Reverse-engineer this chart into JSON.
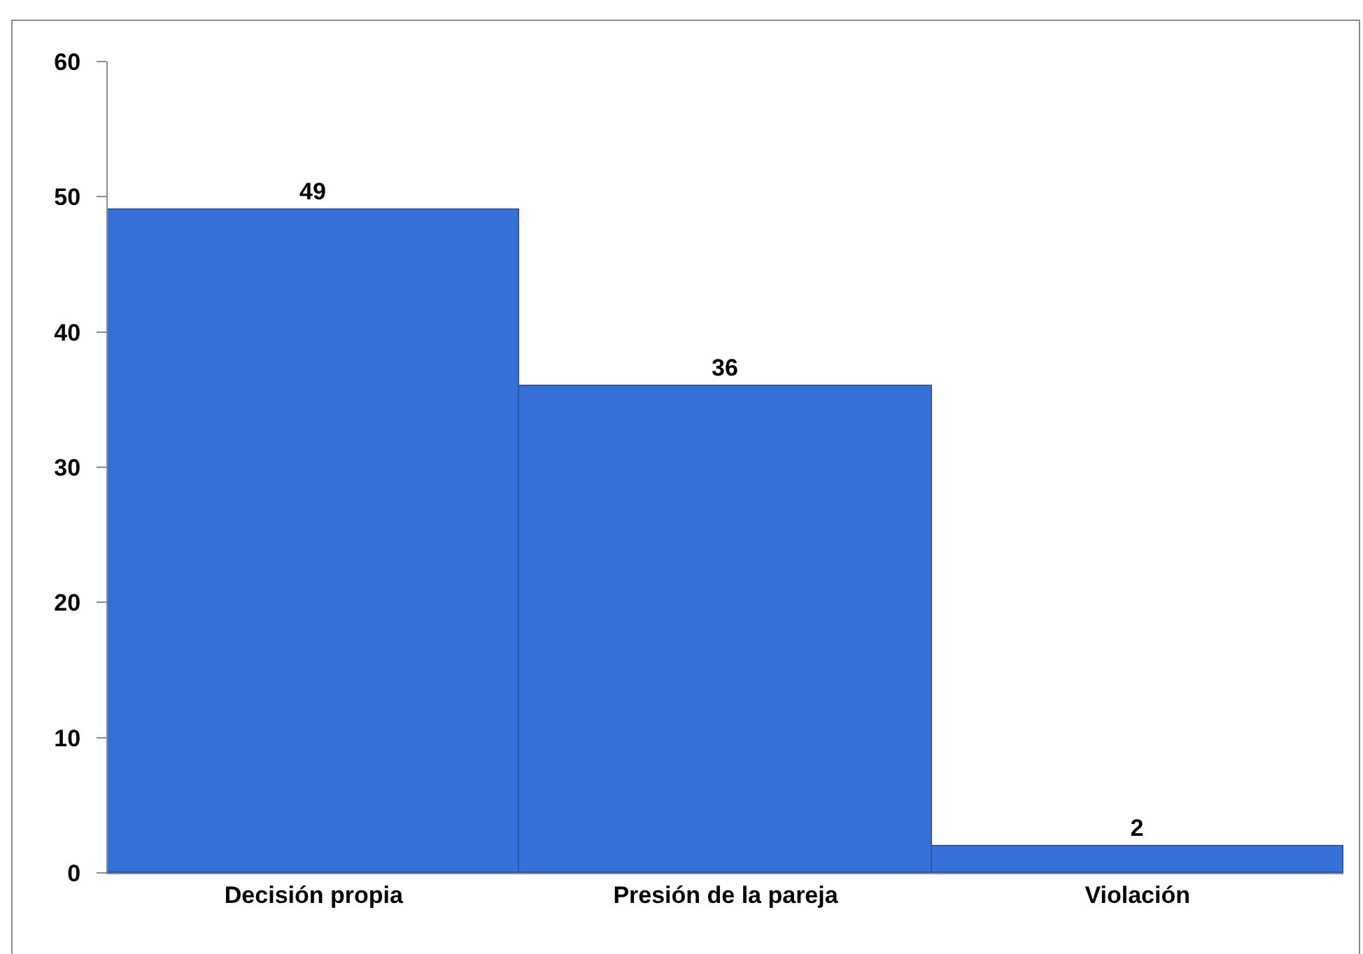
{
  "chart_data": {
    "type": "bar",
    "categories": [
      "Decisión propia",
      "Presión de la pareja",
      "Violación"
    ],
    "values": [
      49,
      36,
      2
    ],
    "color": "#3571d9",
    "ylim": [
      0,
      60
    ],
    "yticks": [
      0,
      10,
      20,
      30,
      40,
      50,
      60
    ],
    "grid": false,
    "data_labels": true
  }
}
